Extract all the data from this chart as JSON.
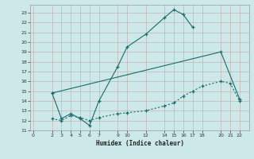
{
  "xlabel": "Humidex (Indice chaleur)",
  "bg_color": "#cce8e8",
  "grid_major_color": "#b8c8c0",
  "grid_minor_color": "#d0ddd8",
  "line_color": "#1a6b6b",
  "xlim": [
    -0.3,
    23.0
  ],
  "ylim": [
    11.0,
    23.8
  ],
  "xticks": [
    0,
    2,
    3,
    4,
    5,
    6,
    7,
    9,
    10,
    12,
    14,
    15,
    16,
    17,
    18,
    20,
    21,
    22
  ],
  "yticks": [
    11,
    12,
    13,
    14,
    15,
    16,
    17,
    18,
    19,
    20,
    21,
    22,
    23
  ],
  "line1_x": [
    2,
    3,
    4,
    5,
    6,
    7,
    9,
    10,
    12,
    14,
    15,
    16,
    17
  ],
  "line1_y": [
    14.8,
    12.2,
    12.7,
    12.2,
    11.5,
    14.0,
    17.5,
    19.5,
    20.8,
    22.5,
    23.3,
    22.8,
    21.5
  ],
  "line2_x": [
    2,
    20,
    22
  ],
  "line2_y": [
    14.8,
    19.0,
    14.2
  ],
  "line3_x": [
    2,
    3,
    4,
    5,
    6,
    7,
    9,
    10,
    12,
    14,
    15,
    16,
    17,
    18,
    20,
    21,
    22
  ],
  "line3_y": [
    12.2,
    12.0,
    12.5,
    12.3,
    12.0,
    12.3,
    12.7,
    12.8,
    13.0,
    13.5,
    13.8,
    14.5,
    15.0,
    15.5,
    16.0,
    15.8,
    14.0
  ]
}
